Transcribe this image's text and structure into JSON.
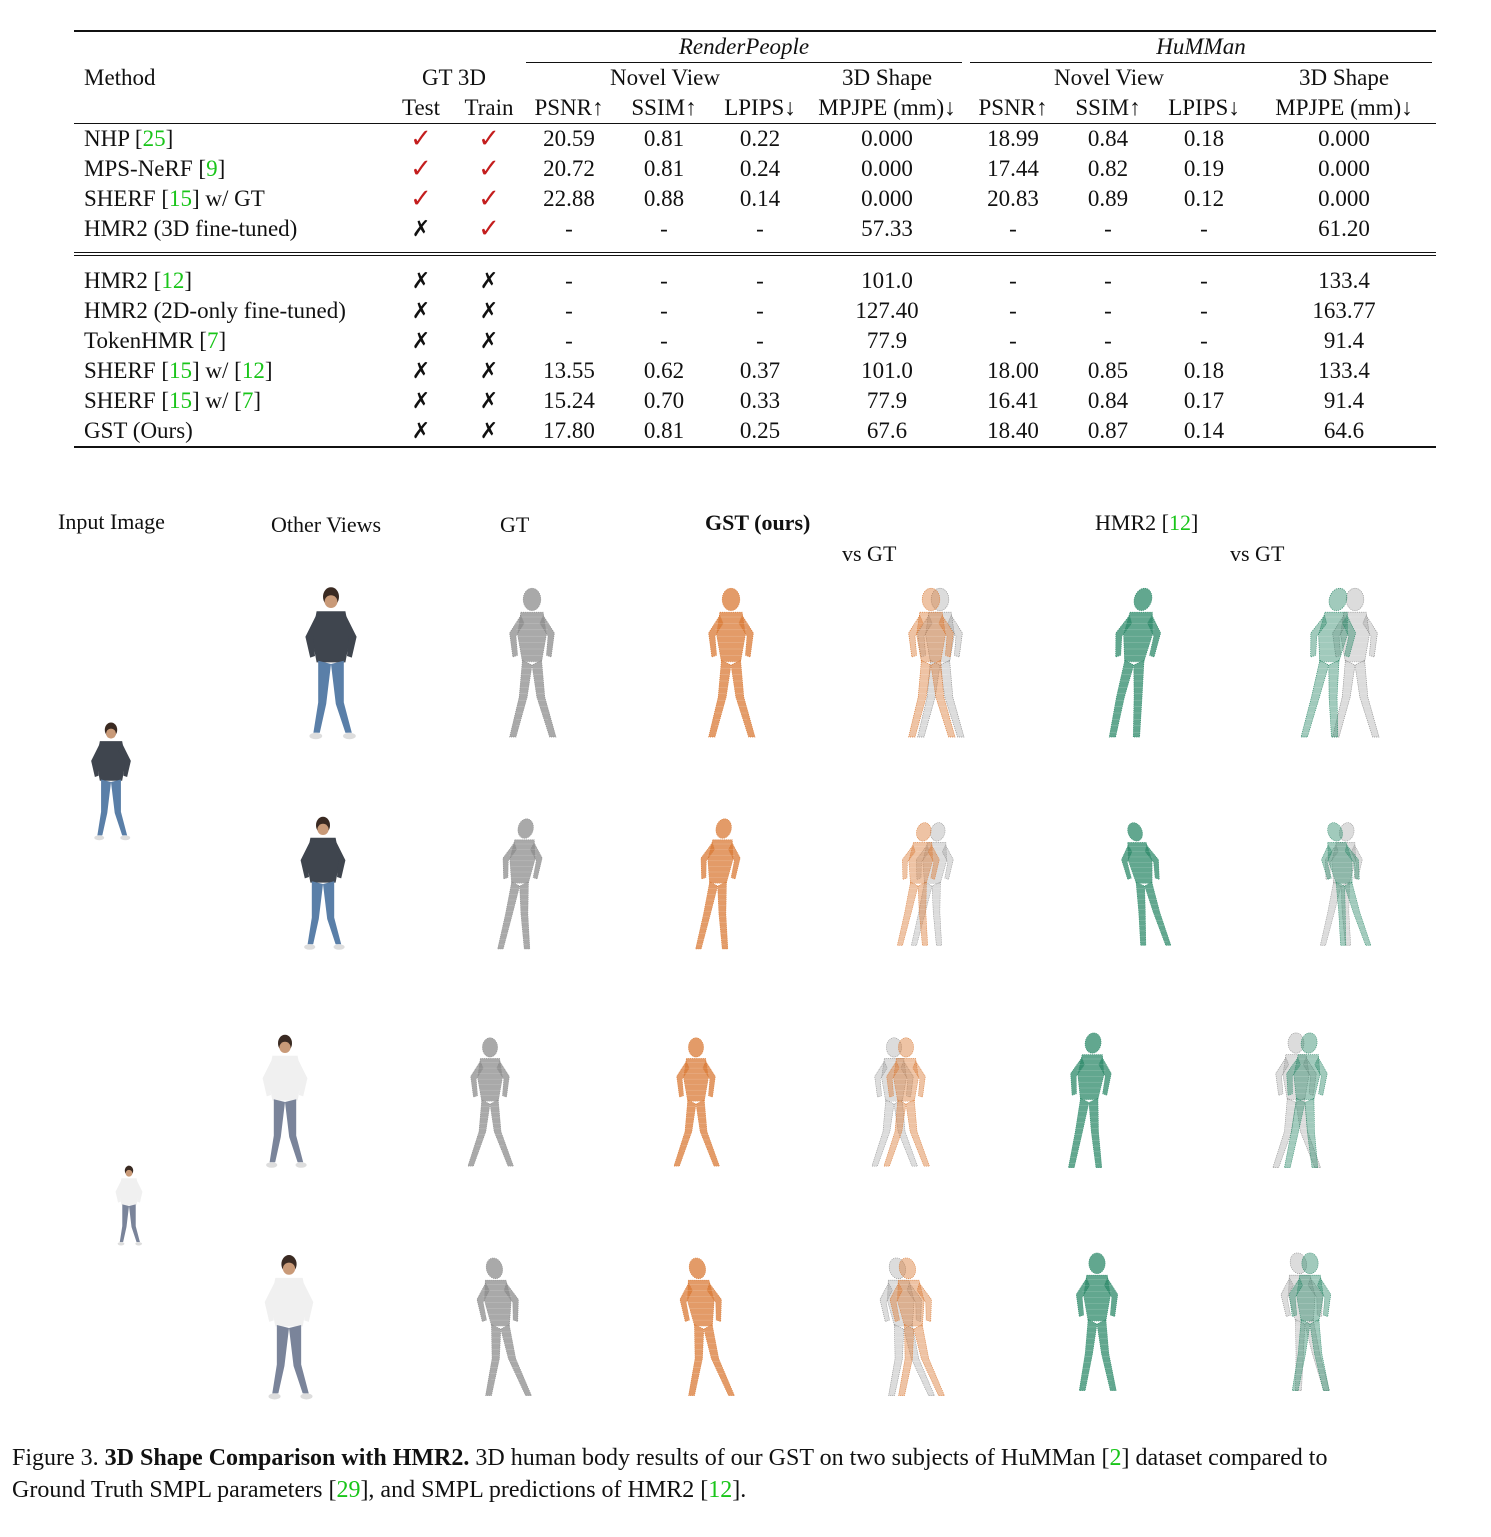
{
  "table": {
    "header": {
      "method": "Method",
      "gt3d": "GT 3D",
      "test": "Test",
      "train": "Train",
      "datasets": [
        "RenderPeople",
        "HuMMan"
      ],
      "novel_view": "Novel View",
      "shape": "3D Shape",
      "metrics": [
        "PSNR↑",
        "SSIM↑",
        "LPIPS↓",
        "MPJPE (mm)↓"
      ]
    },
    "group1": [
      {
        "method": "NHP [",
        "cite": "25",
        "suffix": "]",
        "test": "✓",
        "train": "✓",
        "rp": [
          "20.59",
          "0.81",
          "0.22",
          "0.000"
        ],
        "hm": [
          "18.99",
          "0.84",
          "0.18",
          "0.000"
        ]
      },
      {
        "method": "MPS-NeRF [",
        "cite": "9",
        "suffix": "]",
        "test": "✓",
        "train": "✓",
        "rp": [
          "20.72",
          "0.81",
          "0.24",
          "0.000"
        ],
        "hm": [
          "17.44",
          "0.82",
          "0.19",
          "0.000"
        ]
      },
      {
        "method": "SHERF [",
        "cite": "15",
        "suffix": "] w/ GT",
        "test": "✓",
        "train": "✓",
        "rp": [
          "22.88",
          "0.88",
          "0.14",
          "0.000"
        ],
        "hm": [
          "20.83",
          "0.89",
          "0.12",
          "0.000"
        ]
      },
      {
        "method": "HMR2  (3D fine-tuned)",
        "cite": "",
        "suffix": "",
        "test": "✗",
        "train": "✓",
        "rp": [
          "-",
          "-",
          "-",
          "57.33"
        ],
        "hm": [
          "-",
          "-",
          "-",
          "61.20"
        ]
      }
    ],
    "group2": [
      {
        "method": "HMR2 [",
        "cite": "12",
        "suffix": "]",
        "cite2": "",
        "suffix2": "",
        "test": "✗",
        "train": "✗",
        "rp": [
          "-",
          "-",
          "-",
          "101.0"
        ],
        "hm": [
          "-",
          "-",
          "-",
          "133.4"
        ]
      },
      {
        "method": "HMR2  (2D-only fine-tuned)",
        "cite": "",
        "suffix": "",
        "cite2": "",
        "suffix2": "",
        "test": "✗",
        "train": "✗",
        "rp": [
          "-",
          "-",
          "-",
          "127.40"
        ],
        "hm": [
          "-",
          "-",
          "-",
          "163.77"
        ]
      },
      {
        "method": "TokenHMR [",
        "cite": "7",
        "suffix": "]",
        "cite2": "",
        "suffix2": "",
        "test": "✗",
        "train": "✗",
        "rp": [
          "-",
          "-",
          "-",
          "77.9"
        ],
        "hm": [
          "-",
          "-",
          "-",
          "91.4"
        ]
      },
      {
        "method": "SHERF [",
        "cite": "15",
        "suffix": "] w/ [",
        "cite2": "12",
        "suffix2": "]",
        "test": "✗",
        "train": "✗",
        "rp": [
          "13.55",
          "0.62",
          "0.37",
          "101.0"
        ],
        "hm": [
          "18.00",
          "0.85",
          "0.18",
          "133.4"
        ]
      },
      {
        "method": "SHERF [",
        "cite": "15",
        "suffix": "] w/ [",
        "cite2": "7",
        "suffix2": "]",
        "test": "✗",
        "train": "✗",
        "rp": [
          "15.24",
          "0.70",
          "0.33",
          "77.9"
        ],
        "hm": [
          "16.41",
          "0.84",
          "0.17",
          "91.4"
        ]
      }
    ],
    "ours": {
      "method": "GST (Ours)",
      "test": "✗",
      "train": "✗",
      "rp": [
        "17.80",
        "0.81",
        "0.25",
        "67.6"
      ],
      "hm": [
        "18.40",
        "0.87",
        "0.14",
        "64.6"
      ]
    }
  },
  "figure": {
    "labels": {
      "input": "Input Image",
      "other": "Other Views",
      "gt": "GT",
      "gst": "GST (ours)",
      "hmr2": "HMR2 [",
      "hmr2_cite": "12",
      "hmr2_suffix": "]",
      "vs_gt_1": "vs GT",
      "vs_gt_2": "vs GT"
    },
    "colors": {
      "gt": "#8c8c8c",
      "gst": "#d97a35",
      "hmr2": "#2e8a6a"
    }
  },
  "caption": {
    "prefix": "Figure 3. ",
    "bold": "3D Shape Comparison with HMR2.",
    "text1": " 3D human body results of our GST on two subjects of HuMMan [",
    "cite1": "2",
    "text2": "] dataset compared to",
    "text3": "Ground Truth SMPL parameters [",
    "cite2": "29",
    "text4": "], and SMPL predictions of HMR2 [",
    "cite3": "12",
    "text5": "]."
  }
}
